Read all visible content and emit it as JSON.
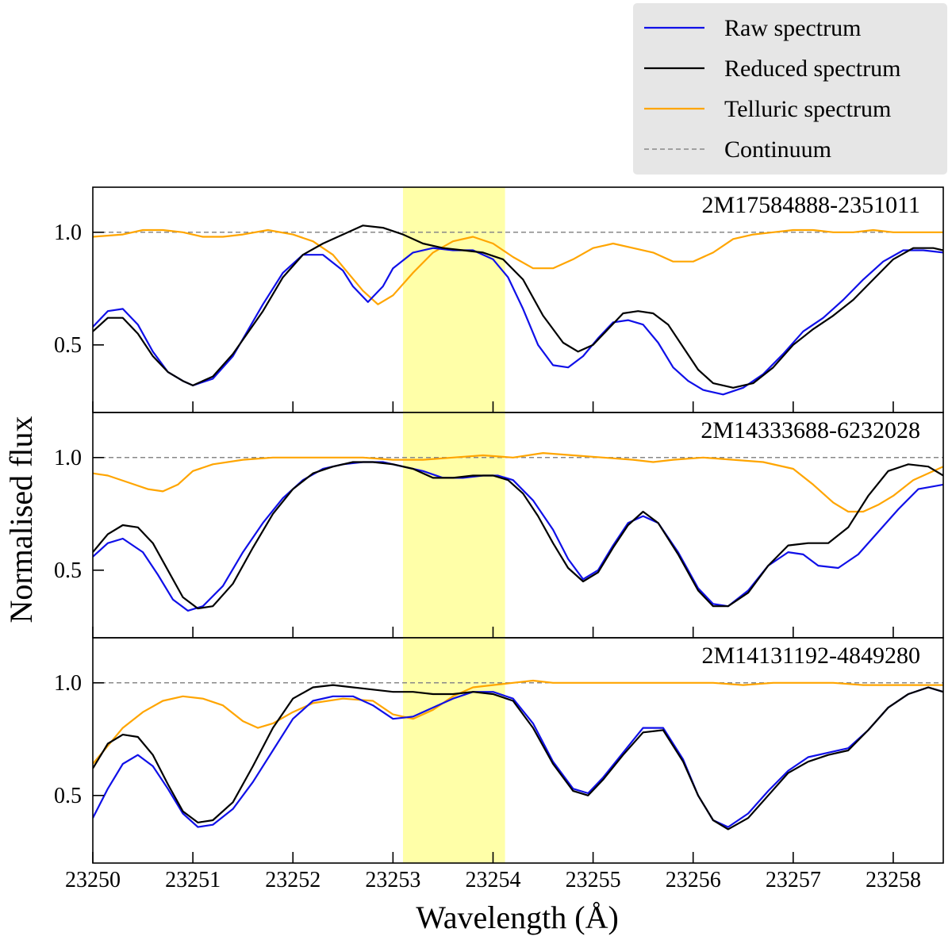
{
  "chart_data": {
    "type": "line",
    "xlabel": "Wavelength (Å)",
    "ylabel": "Normalised flux",
    "xlim": [
      23250.0,
      23258.5
    ],
    "ylim": [
      0.2,
      1.2
    ],
    "x_ticks": [
      23250,
      23251,
      23252,
      23253,
      23254,
      23255,
      23256,
      23257,
      23258
    ],
    "y_ticks": [
      "0.5",
      "1.0"
    ],
    "highlight_band": [
      23253.1,
      23254.12
    ],
    "highlight_color": "#ffff99",
    "continuum_level": 1.0,
    "grid": false,
    "legend_position": "top-right",
    "legend": [
      {
        "key": "raw",
        "label": "Raw spectrum",
        "color": "#1010e8",
        "dash": false
      },
      {
        "key": "reduced",
        "label": "Reduced spectrum",
        "color": "#000000",
        "dash": false
      },
      {
        "key": "telluric",
        "label": "Telluric spectrum",
        "color": "#ffa500",
        "dash": false
      },
      {
        "key": "continuum",
        "label": "Continuum",
        "color": "#888888",
        "dash": true
      }
    ],
    "panels": [
      {
        "label": "2M17584888-2351011",
        "series": [
          {
            "key": "raw",
            "x": [
              23250.0,
              23250.15,
              23250.3,
              23250.45,
              23250.6,
              23250.75,
              23250.9,
              23251.0,
              23251.2,
              23251.4,
              23251.7,
              23251.9,
              23252.1,
              23252.3,
              23252.5,
              23252.6,
              23252.75,
              23252.9,
              23253.0,
              23253.2,
              23253.4,
              23253.6,
              23253.8,
              23254.0,
              23254.15,
              23254.3,
              23254.45,
              23254.6,
              23254.75,
              23254.9,
              23255.05,
              23255.2,
              23255.35,
              23255.5,
              23255.65,
              23255.8,
              23255.95,
              23256.1,
              23256.3,
              23256.5,
              23256.7,
              23256.9,
              23257.1,
              23257.3,
              23257.5,
              23257.7,
              23257.9,
              23258.1,
              23258.3,
              23258.5
            ],
            "y": [
              0.58,
              0.65,
              0.66,
              0.59,
              0.47,
              0.38,
              0.34,
              0.32,
              0.35,
              0.45,
              0.68,
              0.82,
              0.9,
              0.9,
              0.83,
              0.76,
              0.69,
              0.76,
              0.84,
              0.91,
              0.93,
              0.92,
              0.92,
              0.88,
              0.8,
              0.66,
              0.5,
              0.41,
              0.4,
              0.45,
              0.53,
              0.6,
              0.61,
              0.59,
              0.51,
              0.4,
              0.34,
              0.3,
              0.28,
              0.31,
              0.37,
              0.46,
              0.56,
              0.62,
              0.7,
              0.79,
              0.87,
              0.92,
              0.92,
              0.91
            ]
          },
          {
            "key": "reduced",
            "x": [
              23250.0,
              23250.15,
              23250.3,
              23250.45,
              23250.6,
              23250.75,
              23250.9,
              23251.0,
              23251.2,
              23251.4,
              23251.7,
              23251.9,
              23252.1,
              23252.3,
              23252.5,
              23252.7,
              23252.9,
              23253.1,
              23253.3,
              23253.5,
              23253.7,
              23253.9,
              23254.1,
              23254.3,
              23254.5,
              23254.7,
              23254.85,
              23255.0,
              23255.15,
              23255.3,
              23255.45,
              23255.6,
              23255.75,
              23255.9,
              23256.05,
              23256.2,
              23256.4,
              23256.6,
              23256.8,
              23257.0,
              23257.2,
              23257.4,
              23257.6,
              23257.8,
              23258.0,
              23258.2,
              23258.4,
              23258.5
            ],
            "y": [
              0.56,
              0.62,
              0.62,
              0.55,
              0.45,
              0.38,
              0.34,
              0.32,
              0.36,
              0.46,
              0.65,
              0.8,
              0.9,
              0.95,
              0.99,
              1.03,
              1.02,
              0.99,
              0.95,
              0.93,
              0.92,
              0.91,
              0.88,
              0.79,
              0.63,
              0.51,
              0.47,
              0.5,
              0.57,
              0.64,
              0.65,
              0.64,
              0.59,
              0.49,
              0.39,
              0.33,
              0.31,
              0.33,
              0.4,
              0.5,
              0.57,
              0.63,
              0.7,
              0.79,
              0.88,
              0.93,
              0.93,
              0.92
            ]
          },
          {
            "key": "telluric",
            "x": [
              23250.0,
              23250.3,
              23250.5,
              23250.7,
              23250.9,
              23251.1,
              23251.3,
              23251.5,
              23251.75,
              23252.0,
              23252.2,
              23252.4,
              23252.55,
              23252.7,
              23252.85,
              23253.0,
              23253.2,
              23253.4,
              23253.6,
              23253.8,
              23254.0,
              23254.2,
              23254.4,
              23254.6,
              23254.8,
              23255.0,
              23255.2,
              23255.4,
              23255.6,
              23255.8,
              23256.0,
              23256.2,
              23256.4,
              23256.6,
              23256.8,
              23257.0,
              23257.2,
              23257.4,
              23257.6,
              23257.8,
              23258.0,
              23258.2,
              23258.5
            ],
            "y": [
              0.98,
              0.99,
              1.01,
              1.01,
              1.0,
              0.98,
              0.98,
              0.99,
              1.01,
              0.99,
              0.96,
              0.9,
              0.82,
              0.74,
              0.68,
              0.72,
              0.82,
              0.91,
              0.96,
              0.98,
              0.95,
              0.89,
              0.84,
              0.84,
              0.88,
              0.93,
              0.95,
              0.93,
              0.91,
              0.87,
              0.87,
              0.91,
              0.97,
              0.99,
              1.0,
              1.01,
              1.01,
              1.0,
              1.0,
              1.01,
              1.0,
              1.0,
              1.0
            ]
          }
        ]
      },
      {
        "label": "2M14333688-6232028",
        "series": [
          {
            "key": "raw",
            "x": [
              23250.0,
              23250.15,
              23250.3,
              23250.5,
              23250.65,
              23250.8,
              23250.95,
              23251.1,
              23251.3,
              23251.5,
              23251.7,
              23251.9,
              23252.1,
              23252.3,
              23252.5,
              23252.7,
              23252.9,
              23253.1,
              23253.3,
              23253.5,
              23253.7,
              23253.9,
              23254.05,
              23254.2,
              23254.4,
              23254.6,
              23254.75,
              23254.9,
              23255.05,
              23255.2,
              23255.35,
              23255.5,
              23255.65,
              23255.85,
              23256.05,
              23256.2,
              23256.35,
              23256.55,
              23256.75,
              23256.95,
              23257.1,
              23257.25,
              23257.45,
              23257.65,
              23257.85,
              23258.05,
              23258.25,
              23258.5
            ],
            "y": [
              0.56,
              0.62,
              0.64,
              0.58,
              0.48,
              0.37,
              0.32,
              0.34,
              0.43,
              0.58,
              0.71,
              0.82,
              0.9,
              0.95,
              0.97,
              0.98,
              0.98,
              0.96,
              0.94,
              0.91,
              0.91,
              0.92,
              0.92,
              0.9,
              0.81,
              0.68,
              0.55,
              0.46,
              0.5,
              0.61,
              0.71,
              0.74,
              0.71,
              0.58,
              0.42,
              0.35,
              0.34,
              0.41,
              0.52,
              0.58,
              0.57,
              0.52,
              0.51,
              0.57,
              0.67,
              0.77,
              0.86,
              0.88
            ]
          },
          {
            "key": "reduced",
            "x": [
              23250.0,
              23250.15,
              23250.3,
              23250.45,
              23250.6,
              23250.75,
              23250.9,
              23251.05,
              23251.2,
              23251.4,
              23251.6,
              23251.8,
              23252.0,
              23252.2,
              23252.4,
              23252.6,
              23252.8,
              23253.0,
              23253.2,
              23253.4,
              23253.6,
              23253.8,
              23254.0,
              23254.15,
              23254.3,
              23254.45,
              23254.6,
              23254.75,
              23254.9,
              23255.05,
              23255.2,
              23255.35,
              23255.5,
              23255.65,
              23255.85,
              23256.05,
              23256.2,
              23256.35,
              23256.55,
              23256.75,
              23256.95,
              23257.15,
              23257.35,
              23257.55,
              23257.75,
              23257.95,
              23258.15,
              23258.35,
              23258.5
            ],
            "y": [
              0.58,
              0.66,
              0.7,
              0.69,
              0.62,
              0.5,
              0.38,
              0.33,
              0.34,
              0.44,
              0.6,
              0.75,
              0.86,
              0.93,
              0.96,
              0.98,
              0.98,
              0.97,
              0.95,
              0.91,
              0.91,
              0.92,
              0.92,
              0.9,
              0.84,
              0.74,
              0.62,
              0.51,
              0.45,
              0.49,
              0.6,
              0.7,
              0.76,
              0.71,
              0.57,
              0.41,
              0.34,
              0.34,
              0.4,
              0.52,
              0.61,
              0.62,
              0.62,
              0.69,
              0.83,
              0.94,
              0.97,
              0.96,
              0.92
            ]
          },
          {
            "key": "telluric",
            "x": [
              23250.0,
              23250.15,
              23250.35,
              23250.55,
              23250.7,
              23250.85,
              23251.0,
              23251.2,
              23251.5,
              23251.8,
              23252.1,
              23252.4,
              23252.7,
              23253.0,
              23253.3,
              23253.6,
              23253.9,
              23254.2,
              23254.5,
              23254.8,
              23255.1,
              23255.4,
              23255.6,
              23255.8,
              23256.1,
              23256.4,
              23256.7,
              23257.0,
              23257.2,
              23257.4,
              23257.55,
              23257.7,
              23257.85,
              23258.0,
              23258.2,
              23258.5
            ],
            "y": [
              0.93,
              0.92,
              0.89,
              0.86,
              0.85,
              0.88,
              0.94,
              0.97,
              0.99,
              1.0,
              1.0,
              1.0,
              1.0,
              0.99,
              0.99,
              1.0,
              1.01,
              1.0,
              1.02,
              1.01,
              1.0,
              0.99,
              0.98,
              0.99,
              1.0,
              0.99,
              0.98,
              0.95,
              0.88,
              0.8,
              0.76,
              0.76,
              0.79,
              0.83,
              0.9,
              0.96
            ]
          }
        ]
      },
      {
        "label": "2M14131192-4849280",
        "series": [
          {
            "key": "raw",
            "x": [
              23250.0,
              23250.15,
              23250.3,
              23250.45,
              23250.6,
              23250.75,
              23250.9,
              23251.05,
              23251.2,
              23251.4,
              23251.6,
              23251.8,
              23252.0,
              23252.2,
              23252.4,
              23252.6,
              23252.8,
              23253.0,
              23253.2,
              23253.4,
              23253.6,
              23253.8,
              23254.0,
              23254.2,
              23254.4,
              23254.6,
              23254.8,
              23254.95,
              23255.1,
              23255.3,
              23255.5,
              23255.7,
              23255.9,
              23256.05,
              23256.2,
              23256.35,
              23256.55,
              23256.75,
              23256.95,
              23257.15,
              23257.35,
              23257.55,
              23257.75,
              23257.95,
              23258.15,
              23258.35,
              23258.5
            ],
            "y": [
              0.4,
              0.53,
              0.64,
              0.68,
              0.63,
              0.53,
              0.42,
              0.36,
              0.37,
              0.44,
              0.56,
              0.7,
              0.84,
              0.92,
              0.94,
              0.94,
              0.9,
              0.84,
              0.85,
              0.89,
              0.93,
              0.96,
              0.96,
              0.93,
              0.82,
              0.65,
              0.53,
              0.51,
              0.58,
              0.69,
              0.8,
              0.8,
              0.66,
              0.5,
              0.39,
              0.36,
              0.42,
              0.52,
              0.61,
              0.67,
              0.69,
              0.71,
              0.79,
              0.89,
              0.95,
              0.98,
              0.96
            ]
          },
          {
            "key": "reduced",
            "x": [
              23250.0,
              23250.15,
              23250.3,
              23250.45,
              23250.6,
              23250.75,
              23250.9,
              23251.05,
              23251.2,
              23251.4,
              23251.6,
              23251.8,
              23252.0,
              23252.2,
              23252.4,
              23252.6,
              23252.8,
              23253.0,
              23253.2,
              23253.4,
              23253.6,
              23253.8,
              23254.0,
              23254.2,
              23254.4,
              23254.6,
              23254.8,
              23254.95,
              23255.1,
              23255.3,
              23255.5,
              23255.7,
              23255.9,
              23256.05,
              23256.2,
              23256.35,
              23256.55,
              23256.75,
              23256.95,
              23257.15,
              23257.35,
              23257.55,
              23257.75,
              23257.95,
              23258.15,
              23258.35,
              23258.5
            ],
            "y": [
              0.62,
              0.73,
              0.77,
              0.76,
              0.68,
              0.55,
              0.43,
              0.38,
              0.39,
              0.47,
              0.63,
              0.8,
              0.93,
              0.98,
              0.99,
              0.98,
              0.97,
              0.96,
              0.96,
              0.95,
              0.95,
              0.96,
              0.95,
              0.92,
              0.8,
              0.64,
              0.52,
              0.5,
              0.57,
              0.68,
              0.78,
              0.79,
              0.65,
              0.5,
              0.39,
              0.35,
              0.4,
              0.5,
              0.6,
              0.65,
              0.68,
              0.7,
              0.79,
              0.89,
              0.95,
              0.98,
              0.96
            ]
          },
          {
            "key": "telluric",
            "x": [
              23250.0,
              23250.15,
              23250.3,
              23250.5,
              23250.7,
              23250.9,
              23251.1,
              23251.3,
              23251.5,
              23251.65,
              23251.8,
              23252.0,
              23252.2,
              23252.5,
              23252.8,
              23253.0,
              23253.2,
              23253.4,
              23253.6,
              23253.8,
              23254.0,
              23254.2,
              23254.4,
              23254.6,
              23254.8,
              23255.0,
              23255.3,
              23255.6,
              23255.9,
              23256.2,
              23256.5,
              23256.8,
              23257.1,
              23257.4,
              23257.7,
              23258.0,
              23258.3,
              23258.5
            ],
            "y": [
              0.64,
              0.72,
              0.8,
              0.87,
              0.92,
              0.94,
              0.93,
              0.9,
              0.83,
              0.8,
              0.82,
              0.87,
              0.91,
              0.93,
              0.92,
              0.86,
              0.84,
              0.88,
              0.94,
              0.98,
              0.99,
              1.0,
              1.01,
              1.0,
              1.0,
              1.0,
              1.0,
              1.0,
              1.0,
              1.0,
              0.99,
              1.0,
              1.0,
              1.0,
              0.99,
              0.99,
              0.99,
              0.99
            ]
          }
        ]
      }
    ]
  }
}
